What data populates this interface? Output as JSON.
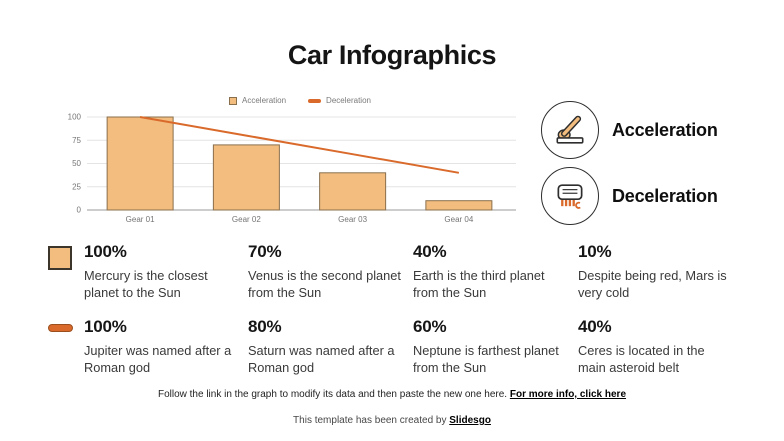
{
  "title": "Car Infographics",
  "chart_data": {
    "type": "bar",
    "categories": [
      "Gear 01",
      "Gear 02",
      "Gear 03",
      "Gear 04"
    ],
    "series": [
      {
        "name": "Acceleration",
        "type": "bar",
        "values": [
          100,
          70,
          40,
          10
        ]
      },
      {
        "name": "Deceleration",
        "type": "line",
        "values": [
          100,
          80,
          60,
          40
        ]
      }
    ],
    "title": "",
    "xlabel": "",
    "ylabel": "",
    "ylim": [
      0,
      100
    ],
    "yticks": [
      0,
      25,
      50,
      75,
      100
    ],
    "grid": true,
    "legend_position": "top"
  },
  "side_panel": {
    "items": [
      {
        "label": "Acceleration",
        "icon": "gear-lever-icon"
      },
      {
        "label": "Deceleration",
        "icon": "brake-radiator-icon"
      }
    ]
  },
  "stats": {
    "rows": [
      {
        "swatch": "acceleration-bar-swatch",
        "items": [
          {
            "value": "100%",
            "description": "Mercury is the closest planet to the Sun"
          },
          {
            "value": "70%",
            "description": "Venus is the second planet from the Sun"
          },
          {
            "value": "40%",
            "description": "Earth is the third planet from the Sun"
          },
          {
            "value": "10%",
            "description": "Despite being red, Mars is very cold"
          }
        ]
      },
      {
        "swatch": "deceleration-line-swatch",
        "items": [
          {
            "value": "100%",
            "description": "Jupiter was named after a Roman god"
          },
          {
            "value": "80%",
            "description": "Saturn was named after a Roman god"
          },
          {
            "value": "60%",
            "description": "Neptune is farthest planet from the Sun"
          },
          {
            "value": "40%",
            "description": "Ceres is located in the main asteroid belt"
          }
        ]
      }
    ]
  },
  "footer": {
    "note": "Follow the link in the graph to modify its data and then paste the new one here. ",
    "note_link": "For more info, click here",
    "credit": "This template has been created by ",
    "credit_link": "Slidesgo"
  },
  "colors": {
    "accent_light": "#F2BD7E",
    "accent_dark": "#D96A2B",
    "bar_border": "#8A6F4D",
    "swatch_border_dark": "#3C352B",
    "dash_border": "#9C4F1E",
    "grid": "#E4E4E4",
    "axis": "#9B9B9B",
    "axis_text": "#757575"
  }
}
